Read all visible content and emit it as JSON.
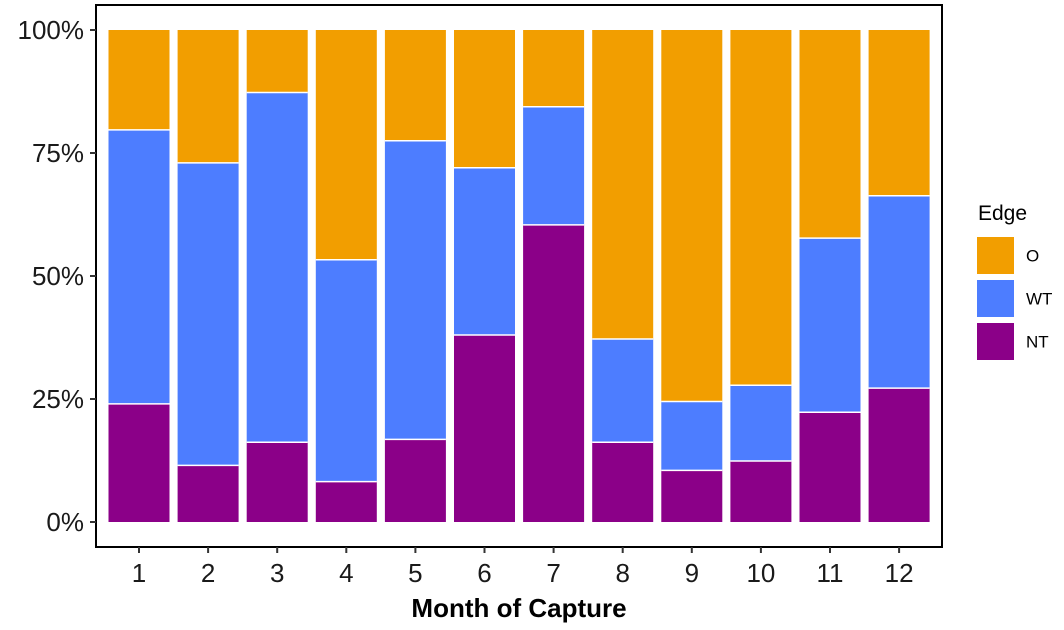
{
  "chart_data": {
    "type": "bar",
    "stacked": true,
    "percent": true,
    "categories": [
      "1",
      "2",
      "3",
      "4",
      "5",
      "6",
      "7",
      "8",
      "9",
      "10",
      "11",
      "12"
    ],
    "series": [
      {
        "name": "NT",
        "color": "#8B0088",
        "values": [
          24,
          11.5,
          16.2,
          8.2,
          16.8,
          38,
          60.4,
          16.2,
          10.5,
          12.4,
          22.3,
          27.2
        ]
      },
      {
        "name": "WT",
        "color": "#4D7DFF",
        "values": [
          55.7,
          61.5,
          71.1,
          45.1,
          60.7,
          34,
          24,
          21,
          14,
          15.4,
          35.4,
          39.1
        ]
      },
      {
        "name": "O",
        "color": "#F29E00",
        "values": [
          20.3,
          27,
          12.7,
          46.7,
          22.5,
          28,
          15.6,
          62.8,
          75.5,
          72.2,
          42.3,
          33.7
        ]
      }
    ],
    "xlabel": "Month of Capture",
    "ylabel": "",
    "ylim": [
      0,
      100
    ],
    "yticks": [
      {
        "value": 0,
        "label": "0%"
      },
      {
        "value": 25,
        "label": "25%"
      },
      {
        "value": 50,
        "label": "50%"
      },
      {
        "value": 75,
        "label": "75%"
      },
      {
        "value": 100,
        "label": "100%"
      }
    ],
    "legend": {
      "title": "Edge",
      "position": "right",
      "entries": [
        {
          "label": "O",
          "color": "#F29E00"
        },
        {
          "label": "WT",
          "color": "#4D7DFF"
        },
        {
          "label": "NT",
          "color": "#8B0088"
        }
      ]
    },
    "grid": false
  }
}
